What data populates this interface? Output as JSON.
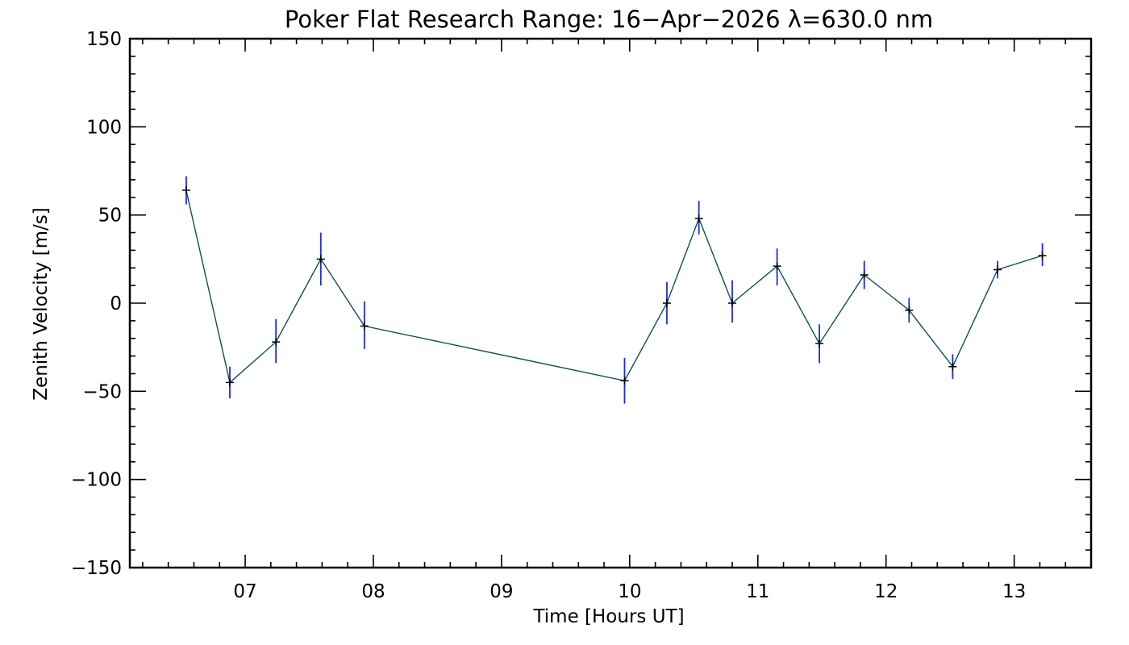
{
  "chart_data": {
    "type": "line",
    "title": "Poker Flat Research Range: 16−Apr−2026 λ=630.0 nm",
    "xlabel": "Time [Hours UT]",
    "ylabel": "Zenith Velocity [m/s]",
    "xlim": [
      6.1,
      13.6
    ],
    "ylim": [
      -150,
      150
    ],
    "x_ticks": [
      7,
      8,
      9,
      10,
      11,
      12,
      13
    ],
    "x_tick_labels": [
      "07",
      "08",
      "09",
      "10",
      "11",
      "12",
      "13"
    ],
    "x_minor_step": 0.2,
    "y_ticks": [
      150,
      100,
      50,
      0,
      -50,
      -100,
      -150
    ],
    "y_tick_labels": [
      "150",
      "100",
      "50",
      "0",
      "−50",
      "−100",
      "−150"
    ],
    "y_minor_step": 10,
    "grid": false,
    "line_color": "#0f4f5c",
    "errorbar_color": "#1f2bdc",
    "marker_color": "#000000",
    "series": [
      {
        "name": "Zenith Velocity",
        "x": [
          6.54,
          6.88,
          7.24,
          7.59,
          7.93,
          9.96,
          10.29,
          10.54,
          10.8,
          11.15,
          11.48,
          11.83,
          12.18,
          12.52,
          12.87,
          13.22
        ],
        "y": [
          64,
          -45,
          -22,
          25,
          -13,
          -44,
          0,
          48,
          0,
          21,
          -23,
          16,
          -4,
          -36,
          19,
          27
        ],
        "err_low": [
          56,
          -54,
          -34,
          10,
          -26,
          -57,
          -12,
          39,
          -11,
          10,
          -34,
          8,
          -11,
          -43,
          14,
          21
        ],
        "err_high": [
          72,
          -36,
          -9,
          40,
          1,
          -31,
          12,
          58,
          13,
          31,
          -12,
          24,
          3,
          -29,
          24,
          34
        ]
      }
    ]
  }
}
